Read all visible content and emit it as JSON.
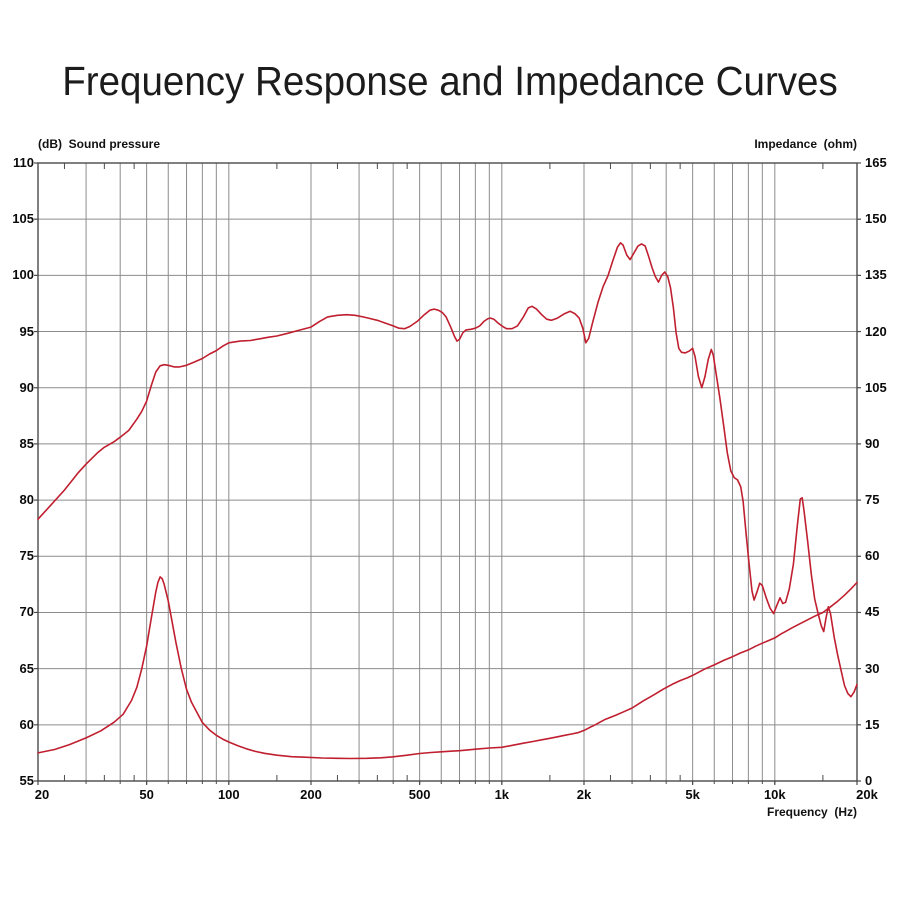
{
  "title": "Frequency Response and Impedance Curves",
  "chart_data": {
    "type": "line",
    "title": "Frequency Response and Impedance Curves",
    "x_axis": {
      "title": "Frequency  (Hz)",
      "scale": "log",
      "range": [
        20,
        20000
      ],
      "tick_labels": [
        {
          "f": 20,
          "t": "20"
        },
        {
          "f": 50,
          "t": "50"
        },
        {
          "f": 100,
          "t": "100"
        },
        {
          "f": 200,
          "t": "200"
        },
        {
          "f": 500,
          "t": "500"
        },
        {
          "f": 1000,
          "t": "1k"
        },
        {
          "f": 2000,
          "t": "2k"
        },
        {
          "f": 5000,
          "t": "5k"
        },
        {
          "f": 10000,
          "t": "10k"
        },
        {
          "f": 20000,
          "t": "20k"
        }
      ],
      "gridline_freqs": [
        30,
        40,
        50,
        60,
        70,
        80,
        90,
        100,
        200,
        300,
        400,
        500,
        600,
        700,
        800,
        900,
        1000,
        2000,
        3000,
        4000,
        5000,
        6000,
        7000,
        8000,
        9000,
        10000
      ],
      "minor_tick_freqs": [
        25,
        35,
        45,
        150,
        250,
        350,
        450,
        1500,
        2500,
        3500,
        4500,
        15000
      ]
    },
    "left_axis": {
      "title": "(dB)  Sound pressure",
      "range": [
        55,
        110
      ],
      "tick_step": 5,
      "tick_labels": [
        "110",
        "105",
        "100",
        "95",
        "90",
        "85",
        "80",
        "75",
        "70",
        "65",
        "60",
        "55"
      ]
    },
    "right_axis": {
      "title": "Impedance  (ohm)",
      "range": [
        0,
        165
      ],
      "tick_step": 15,
      "tick_labels": [
        "165",
        "150",
        "135",
        "120",
        "105",
        "90",
        "75",
        "60",
        "45",
        "30",
        "15",
        "0"
      ]
    },
    "grid_on": true,
    "legend": "none",
    "colors": {
      "curve": "#c01f2f",
      "grid": "#8c8c8c",
      "border": "#4a4a4a",
      "text": "#0a0a0a"
    },
    "series": [
      {
        "name": "sound-pressure-response",
        "axis": "left",
        "unit": "dB",
        "points": [
          [
            20,
            78.3
          ],
          [
            22,
            79.4
          ],
          [
            25,
            80.9
          ],
          [
            28,
            82.4
          ],
          [
            30,
            83.2
          ],
          [
            33,
            84.2
          ],
          [
            35,
            84.7
          ],
          [
            38,
            85.2
          ],
          [
            40,
            85.6
          ],
          [
            43,
            86.2
          ],
          [
            46,
            87.2
          ],
          [
            48,
            87.9
          ],
          [
            50,
            88.8
          ],
          [
            52,
            90.2
          ],
          [
            54,
            91.4
          ],
          [
            56,
            91.95
          ],
          [
            58,
            92.05
          ],
          [
            60,
            92.0
          ],
          [
            63,
            91.85
          ],
          [
            66,
            91.85
          ],
          [
            70,
            92.0
          ],
          [
            75,
            92.3
          ],
          [
            80,
            92.6
          ],
          [
            85,
            93.0
          ],
          [
            90,
            93.3
          ],
          [
            95,
            93.7
          ],
          [
            100,
            94.0
          ],
          [
            110,
            94.15
          ],
          [
            120,
            94.2
          ],
          [
            130,
            94.35
          ],
          [
            140,
            94.5
          ],
          [
            150,
            94.6
          ],
          [
            165,
            94.85
          ],
          [
            180,
            95.1
          ],
          [
            200,
            95.4
          ],
          [
            215,
            95.9
          ],
          [
            230,
            96.3
          ],
          [
            250,
            96.45
          ],
          [
            270,
            96.5
          ],
          [
            290,
            96.45
          ],
          [
            310,
            96.3
          ],
          [
            330,
            96.15
          ],
          [
            350,
            96.0
          ],
          [
            370,
            95.8
          ],
          [
            400,
            95.5
          ],
          [
            420,
            95.3
          ],
          [
            440,
            95.25
          ],
          [
            460,
            95.45
          ],
          [
            490,
            95.9
          ],
          [
            520,
            96.5
          ],
          [
            545,
            96.9
          ],
          [
            565,
            97.0
          ],
          [
            585,
            96.9
          ],
          [
            605,
            96.7
          ],
          [
            625,
            96.3
          ],
          [
            650,
            95.4
          ],
          [
            670,
            94.6
          ],
          [
            685,
            94.15
          ],
          [
            700,
            94.3
          ],
          [
            720,
            94.9
          ],
          [
            740,
            95.15
          ],
          [
            770,
            95.2
          ],
          [
            800,
            95.3
          ],
          [
            830,
            95.5
          ],
          [
            860,
            95.9
          ],
          [
            890,
            96.15
          ],
          [
            910,
            96.2
          ],
          [
            935,
            96.1
          ],
          [
            965,
            95.8
          ],
          [
            1000,
            95.5
          ],
          [
            1040,
            95.25
          ],
          [
            1090,
            95.25
          ],
          [
            1140,
            95.5
          ],
          [
            1200,
            96.3
          ],
          [
            1250,
            97.1
          ],
          [
            1290,
            97.25
          ],
          [
            1340,
            97.0
          ],
          [
            1400,
            96.5
          ],
          [
            1460,
            96.1
          ],
          [
            1520,
            96.0
          ],
          [
            1600,
            96.2
          ],
          [
            1700,
            96.6
          ],
          [
            1780,
            96.8
          ],
          [
            1850,
            96.6
          ],
          [
            1920,
            96.2
          ],
          [
            1980,
            95.3
          ],
          [
            2030,
            94.0
          ],
          [
            2080,
            94.4
          ],
          [
            2150,
            95.8
          ],
          [
            2250,
            97.6
          ],
          [
            2350,
            99.0
          ],
          [
            2450,
            100.0
          ],
          [
            2550,
            101.3
          ],
          [
            2650,
            102.5
          ],
          [
            2720,
            102.9
          ],
          [
            2780,
            102.7
          ],
          [
            2870,
            101.8
          ],
          [
            2950,
            101.4
          ],
          [
            3050,
            102.0
          ],
          [
            3150,
            102.6
          ],
          [
            3250,
            102.8
          ],
          [
            3350,
            102.6
          ],
          [
            3450,
            101.7
          ],
          [
            3550,
            100.7
          ],
          [
            3650,
            99.9
          ],
          [
            3750,
            99.4
          ],
          [
            3850,
            100.0
          ],
          [
            3950,
            100.3
          ],
          [
            4050,
            99.9
          ],
          [
            4150,
            98.9
          ],
          [
            4250,
            97.1
          ],
          [
            4350,
            94.9
          ],
          [
            4450,
            93.5
          ],
          [
            4550,
            93.15
          ],
          [
            4700,
            93.1
          ],
          [
            4850,
            93.25
          ],
          [
            5000,
            93.5
          ],
          [
            5100,
            92.8
          ],
          [
            5250,
            91.0
          ],
          [
            5400,
            90.0
          ],
          [
            5550,
            91.0
          ],
          [
            5700,
            92.5
          ],
          [
            5850,
            93.4
          ],
          [
            5950,
            92.9
          ],
          [
            6100,
            91.2
          ],
          [
            6300,
            89.0
          ],
          [
            6500,
            86.6
          ],
          [
            6700,
            84.2
          ],
          [
            6900,
            82.6
          ],
          [
            7100,
            82.0
          ],
          [
            7300,
            81.8
          ],
          [
            7500,
            81.2
          ],
          [
            7650,
            79.9
          ],
          [
            7850,
            77.0
          ],
          [
            8050,
            74.3
          ],
          [
            8250,
            71.9
          ],
          [
            8400,
            71.1
          ],
          [
            8600,
            71.8
          ],
          [
            8800,
            72.6
          ],
          [
            9000,
            72.4
          ],
          [
            9300,
            71.3
          ],
          [
            9600,
            70.4
          ],
          [
            9900,
            69.9
          ],
          [
            10200,
            70.7
          ],
          [
            10450,
            71.3
          ],
          [
            10700,
            70.8
          ],
          [
            10950,
            70.9
          ],
          [
            11300,
            72.1
          ],
          [
            11700,
            74.3
          ],
          [
            12100,
            77.8
          ],
          [
            12400,
            80.1
          ],
          [
            12600,
            80.2
          ],
          [
            12800,
            79.0
          ],
          [
            13200,
            76.3
          ],
          [
            13600,
            73.4
          ],
          [
            14000,
            71.2
          ],
          [
            14400,
            69.9
          ],
          [
            14800,
            68.8
          ],
          [
            15100,
            68.3
          ],
          [
            15400,
            69.5
          ],
          [
            15700,
            70.5
          ],
          [
            16000,
            69.9
          ],
          [
            16500,
            67.8
          ],
          [
            17000,
            66.2
          ],
          [
            17500,
            64.8
          ],
          [
            18000,
            63.5
          ],
          [
            18500,
            62.8
          ],
          [
            19000,
            62.5
          ],
          [
            19500,
            62.9
          ],
          [
            20000,
            63.6
          ]
        ]
      },
      {
        "name": "impedance",
        "axis": "right",
        "unit": "ohm",
        "points": [
          [
            20,
            7.5
          ],
          [
            23,
            8.4
          ],
          [
            26,
            9.7
          ],
          [
            30,
            11.5
          ],
          [
            34,
            13.4
          ],
          [
            38,
            15.7
          ],
          [
            41,
            17.8
          ],
          [
            44,
            21.5
          ],
          [
            46,
            25
          ],
          [
            48,
            30
          ],
          [
            50,
            36
          ],
          [
            52,
            43.5
          ],
          [
            54,
            50.5
          ],
          [
            55,
            53
          ],
          [
            56,
            54.5
          ],
          [
            57,
            54
          ],
          [
            58,
            52.5
          ],
          [
            60,
            48
          ],
          [
            62,
            42.5
          ],
          [
            64,
            37
          ],
          [
            67,
            30
          ],
          [
            70,
            24.5
          ],
          [
            73,
            21
          ],
          [
            76,
            18.6
          ],
          [
            80,
            15.6
          ],
          [
            85,
            13.6
          ],
          [
            90,
            12.2
          ],
          [
            95,
            11.2
          ],
          [
            100,
            10.4
          ],
          [
            108,
            9.4
          ],
          [
            116,
            8.6
          ],
          [
            125,
            7.9
          ],
          [
            135,
            7.4
          ],
          [
            150,
            6.9
          ],
          [
            170,
            6.5
          ],
          [
            190,
            6.35
          ],
          [
            220,
            6.15
          ],
          [
            250,
            6.05
          ],
          [
            280,
            6.0
          ],
          [
            320,
            6.05
          ],
          [
            360,
            6.2
          ],
          [
            400,
            6.45
          ],
          [
            450,
            6.9
          ],
          [
            500,
            7.35
          ],
          [
            550,
            7.6
          ],
          [
            600,
            7.8
          ],
          [
            650,
            7.95
          ],
          [
            700,
            8.1
          ],
          [
            750,
            8.3
          ],
          [
            800,
            8.5
          ],
          [
            900,
            8.8
          ],
          [
            1000,
            9.0
          ],
          [
            1100,
            9.55
          ],
          [
            1200,
            10.1
          ],
          [
            1300,
            10.55
          ],
          [
            1400,
            11.0
          ],
          [
            1500,
            11.4
          ],
          [
            1600,
            11.8
          ],
          [
            1700,
            12.2
          ],
          [
            1800,
            12.55
          ],
          [
            1900,
            12.9
          ],
          [
            2000,
            13.5
          ],
          [
            2100,
            14.3
          ],
          [
            2200,
            15.0
          ],
          [
            2300,
            15.8
          ],
          [
            2400,
            16.5
          ],
          [
            2600,
            17.5
          ],
          [
            2800,
            18.5
          ],
          [
            3000,
            19.5
          ],
          [
            3300,
            21.4
          ],
          [
            3600,
            23.0
          ],
          [
            3900,
            24.5
          ],
          [
            4200,
            25.8
          ],
          [
            4500,
            26.8
          ],
          [
            4800,
            27.6
          ],
          [
            5000,
            28.2
          ],
          [
            5500,
            29.8
          ],
          [
            6000,
            31.0
          ],
          [
            6500,
            32.2
          ],
          [
            7000,
            33.2
          ],
          [
            7500,
            34.2
          ],
          [
            8000,
            35.0
          ],
          [
            8500,
            36.0
          ],
          [
            9000,
            36.8
          ],
          [
            9500,
            37.5
          ],
          [
            10000,
            38.2
          ],
          [
            10500,
            39.2
          ],
          [
            11000,
            40.0
          ],
          [
            11500,
            40.8
          ],
          [
            12000,
            41.5
          ],
          [
            13000,
            42.8
          ],
          [
            14000,
            44.0
          ],
          [
            15000,
            45.0
          ],
          [
            16000,
            46.5
          ],
          [
            17000,
            48.0
          ],
          [
            18000,
            49.6
          ],
          [
            19000,
            51.3
          ],
          [
            20000,
            53.0
          ]
        ]
      }
    ]
  }
}
